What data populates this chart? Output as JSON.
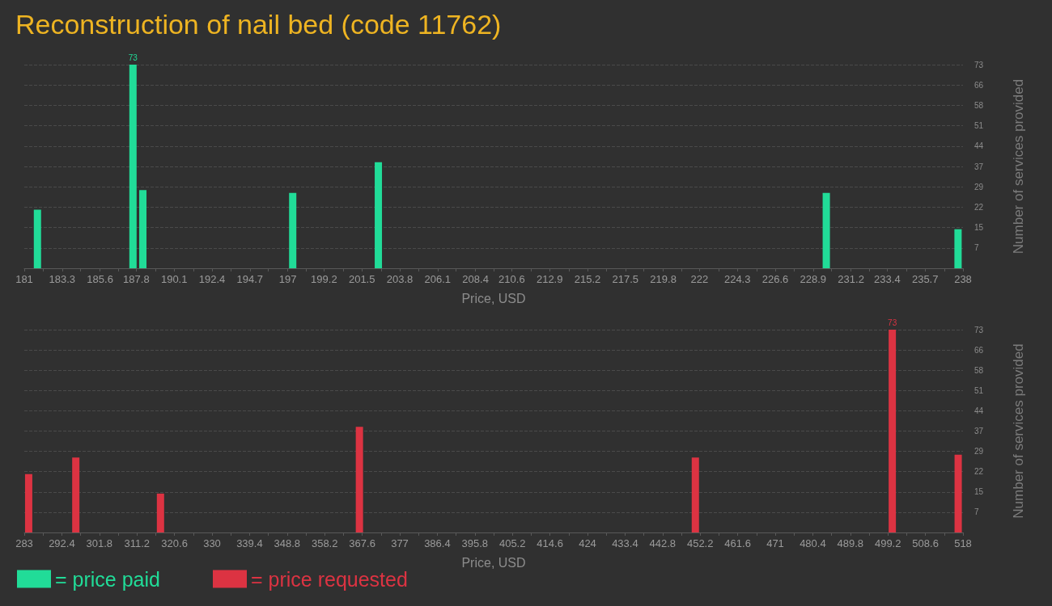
{
  "chart_data": [
    {
      "type": "bar",
      "title": "Reconstruction of nail bed (code 11762)",
      "xlabel": "Price, USD",
      "ylabel": "Number of services provided",
      "x": [
        181.8,
        187.6,
        188.2,
        197.3,
        202.5,
        229.7,
        237.7
      ],
      "series": [
        {
          "name": "= price paid",
          "color": "#21dc98",
          "values": [
            21,
            73,
            28,
            27,
            38,
            27,
            14
          ],
          "value_labels": [
            null,
            "73",
            null,
            null,
            null,
            null,
            null
          ]
        }
      ],
      "xlim": [
        181,
        238
      ],
      "xticks": [
        181,
        {
          "value": 182.14,
          "label": null
        },
        183.3,
        {
          "value": 184.42,
          "label": null
        },
        185.6,
        {
          "value": 186.7,
          "label": null
        },
        187.8,
        {
          "value": 188.98,
          "label": null
        },
        190.1,
        {
          "value": 191.26,
          "label": null
        },
        192.4,
        {
          "value": 193.54,
          "label": null
        },
        194.7,
        {
          "value": 195.82,
          "label": null
        },
        197,
        {
          "value": 198.1,
          "label": null
        },
        199.2,
        {
          "value": 200.38,
          "label": null
        },
        201.5,
        {
          "value": 202.66,
          "label": null
        },
        203.8,
        {
          "value": 204.94,
          "label": null
        },
        206.1,
        {
          "value": 207.22,
          "label": null
        },
        208.4,
        {
          "value": 209.5,
          "label": null
        },
        210.6,
        {
          "value": 211.78,
          "label": null
        },
        212.9,
        {
          "value": 214.06,
          "label": null
        },
        215.2,
        {
          "value": 216.34,
          "label": null
        },
        217.5,
        {
          "value": 218.62,
          "label": null
        },
        219.8,
        {
          "value": 220.9,
          "label": null
        },
        222,
        {
          "value": 223.18,
          "label": null
        },
        224.3,
        {
          "value": 225.46,
          "label": null
        },
        226.6,
        {
          "value": 227.74,
          "label": null
        },
        228.9,
        {
          "value": 230.02,
          "label": null
        },
        231.2,
        {
          "value": 232.3,
          "label": null
        },
        233.4,
        {
          "value": 234.58,
          "label": null
        },
        235.7,
        {
          "value": 236.86,
          "label": null
        },
        238
      ],
      "ylim": [
        0,
        73
      ],
      "yticks": [
        {
          "value": 7.3,
          "label": "7"
        },
        {
          "value": 14.6,
          "label": "15"
        },
        {
          "value": 21.9,
          "label": "22"
        },
        {
          "value": 29.2,
          "label": "29"
        },
        {
          "value": 36.5,
          "label": "37"
        },
        {
          "value": 43.8,
          "label": "44"
        },
        {
          "value": 51.1,
          "label": "51"
        },
        {
          "value": 58.4,
          "label": "58"
        },
        {
          "value": 65.7,
          "label": "66"
        },
        73
      ],
      "grid": "y",
      "legend": "bottom left"
    },
    {
      "type": "bar",
      "xlabel": "Price, USD",
      "ylabel": "Number of services provided",
      "x": [
        284.1,
        295.9,
        317.1,
        366.9,
        451.0,
        500.3,
        516.8
      ],
      "series": [
        {
          "name": "= price requested",
          "color": "#dc3342",
          "values": [
            21,
            27,
            14,
            38,
            27,
            73,
            28
          ],
          "value_labels": [
            null,
            null,
            null,
            null,
            null,
            "73",
            null
          ]
        }
      ],
      "xlim": [
        283,
        518
      ],
      "xticks": [
        283,
        {
          "value": 287.7,
          "label": null
        },
        292.4,
        {
          "value": 297.1,
          "label": null
        },
        301.8,
        {
          "value": 306.5,
          "label": null
        },
        311.2,
        {
          "value": 315.9,
          "label": null
        },
        320.6,
        {
          "value": 325.3,
          "label": null
        },
        330,
        {
          "value": 334.7,
          "label": null
        },
        339.4,
        {
          "value": 344.1,
          "label": null
        },
        348.8,
        {
          "value": 353.5,
          "label": null
        },
        358.2,
        {
          "value": 362.9,
          "label": null
        },
        367.6,
        {
          "value": 372.3,
          "label": null
        },
        377,
        {
          "value": 381.7,
          "label": null
        },
        386.4,
        {
          "value": 391.1,
          "label": null
        },
        395.8,
        {
          "value": 400.5,
          "label": null
        },
        405.2,
        {
          "value": 409.9,
          "label": null
        },
        414.6,
        {
          "value": 419.3,
          "label": null
        },
        424,
        {
          "value": 428.7,
          "label": null
        },
        433.4,
        {
          "value": 438.1,
          "label": null
        },
        442.8,
        {
          "value": 447.5,
          "label": null
        },
        452.2,
        {
          "value": 456.9,
          "label": null
        },
        461.6,
        {
          "value": 466.3,
          "label": null
        },
        471,
        {
          "value": 475.7,
          "label": null
        },
        480.4,
        {
          "value": 485.1,
          "label": null
        },
        489.8,
        {
          "value": 494.5,
          "label": null
        },
        499.2,
        {
          "value": 503.9,
          "label": null
        },
        508.6,
        {
          "value": 513.3,
          "label": null
        },
        518
      ],
      "ylim": [
        0,
        73
      ],
      "yticks": [
        {
          "value": 7.3,
          "label": "7"
        },
        {
          "value": 14.6,
          "label": "15"
        },
        {
          "value": 21.9,
          "label": "22"
        },
        {
          "value": 29.2,
          "label": "29"
        },
        {
          "value": 36.5,
          "label": "37"
        },
        {
          "value": 43.8,
          "label": "44"
        },
        {
          "value": 51.1,
          "label": "51"
        },
        {
          "value": 58.4,
          "label": "58"
        },
        {
          "value": 65.7,
          "label": "66"
        },
        73
      ],
      "grid": "y",
      "legend": "bottom left"
    }
  ]
}
